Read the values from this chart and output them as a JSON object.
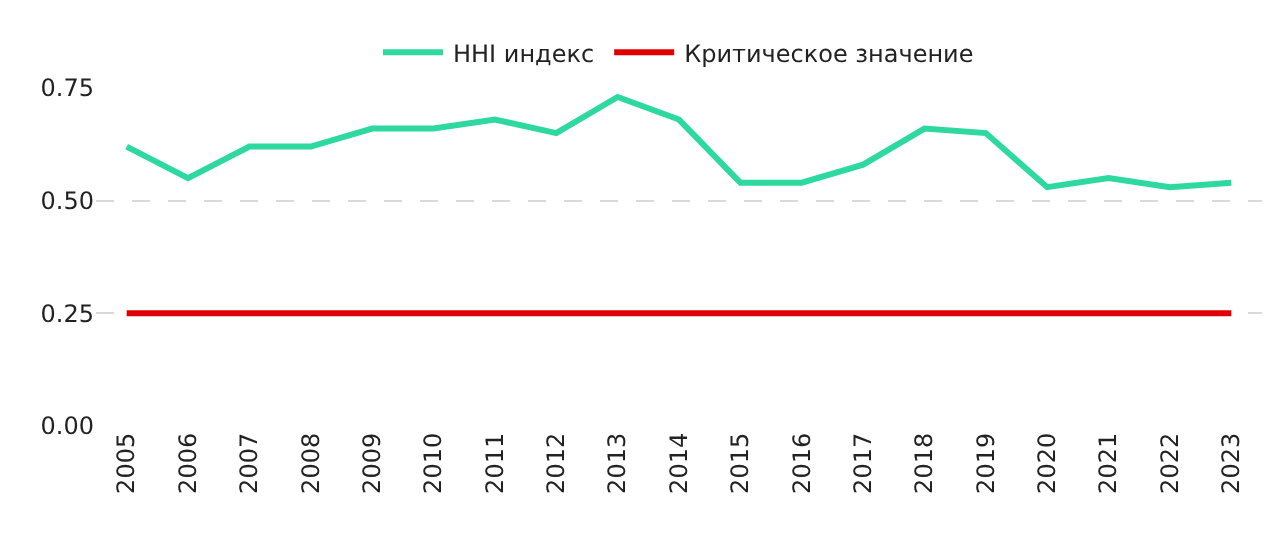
{
  "chart_data": {
    "type": "line",
    "categories": [
      "2005",
      "2006",
      "2007",
      "2008",
      "2009",
      "2010",
      "2011",
      "2012",
      "2013",
      "2014",
      "2015",
      "2016",
      "2017",
      "2018",
      "2019",
      "2020",
      "2021",
      "2022",
      "2023"
    ],
    "series": [
      {
        "name": "HHI индекс",
        "color": "#2ed9a0",
        "values": [
          0.62,
          0.55,
          0.62,
          0.62,
          0.66,
          0.66,
          0.68,
          0.65,
          0.73,
          0.68,
          0.54,
          0.54,
          0.58,
          0.66,
          0.65,
          0.53,
          0.55,
          0.53,
          0.54
        ]
      },
      {
        "name": "Критическое значение",
        "color": "#e00000",
        "values": [
          0.25,
          0.25,
          0.25,
          0.25,
          0.25,
          0.25,
          0.25,
          0.25,
          0.25,
          0.25,
          0.25,
          0.25,
          0.25,
          0.25,
          0.25,
          0.25,
          0.25,
          0.25,
          0.25
        ]
      }
    ],
    "ylim": [
      0,
      0.75
    ],
    "yticks": [
      {
        "value": 0,
        "label": "0.00"
      },
      {
        "value": 0.25,
        "label": "0.25"
      },
      {
        "value": 0.5,
        "label": "0.50"
      },
      {
        "value": 0.75,
        "label": "0.75"
      }
    ],
    "grid": "y",
    "legend": "top",
    "marker": "none",
    "line_style": "solid"
  }
}
